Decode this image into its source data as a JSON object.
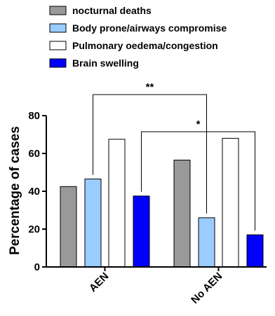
{
  "chart_data": {
    "type": "bar",
    "categories": [
      "AEN",
      "No AEN"
    ],
    "series": [
      {
        "name": "nocturnal deaths",
        "values": [
          42.5,
          56.5
        ],
        "color": "#999999"
      },
      {
        "name": "Body prone/airways compromise",
        "values": [
          46.5,
          26
        ],
        "color": "#99ccff"
      },
      {
        "name": "Pulmonary oedema/congestion",
        "values": [
          67.5,
          68
        ],
        "color": "#ffffff"
      },
      {
        "name": "Brain swelling",
        "values": [
          37.5,
          17
        ],
        "color": "#0000ff"
      }
    ],
    "ylabel": "Percentage of cases",
    "xlabel": "",
    "ylim": [
      0,
      80
    ],
    "yticks": [
      0,
      20,
      40,
      60,
      80
    ],
    "legend_position": "top",
    "grid": false,
    "significance": [
      {
        "label": "**",
        "from_category": "AEN",
        "from_series": "Body prone/airways compromise",
        "to_category": "No AEN",
        "to_series": "Body prone/airways compromise"
      },
      {
        "label": "*",
        "from_category": "AEN",
        "from_series": "Brain swelling",
        "to_category": "No AEN",
        "to_series": "Brain swelling"
      }
    ]
  }
}
